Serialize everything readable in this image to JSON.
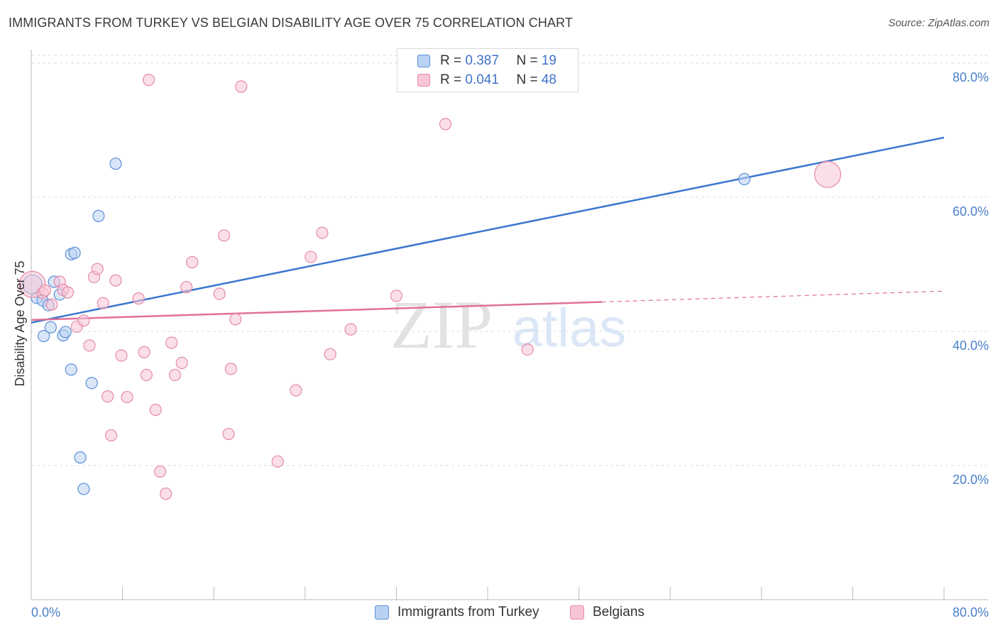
{
  "title": "IMMIGRANTS FROM TURKEY VS BELGIAN DISABILITY AGE OVER 75 CORRELATION CHART",
  "source": "Source: ZipAtlas.com",
  "watermark": {
    "zip": "ZIP",
    "atlas": "atlas"
  },
  "legend": {
    "series1": {
      "r_label": "R = ",
      "r_value": "0.387",
      "n_label": "N = ",
      "n_value": "19"
    },
    "series2": {
      "r_label": "R = ",
      "r_value": "0.041",
      "n_label": "N = ",
      "n_value": "48"
    }
  },
  "colors": {
    "blue_fill": "#b9d2f3",
    "blue_stroke": "#5b8fd6",
    "blue_line": "#3a76cf",
    "pink_fill": "#f8c5d5",
    "pink_stroke": "#e58aa8",
    "pink_line": "#e0709a",
    "grid": "#dddddd",
    "axis": "#bbbbbb"
  },
  "chart_data": {
    "type": "scatter",
    "title": "IMMIGRANTS FROM TURKEY VS BELGIAN DISABILITY AGE OVER 75 CORRELATION CHART",
    "xlabel": "",
    "ylabel": "Disability Age Over 75",
    "xlim": [
      0,
      80
    ],
    "ylim": [
      0,
      82
    ],
    "x_ticks": [
      {
        "value": 0,
        "label": "0.0%"
      },
      {
        "value": 80,
        "label": "80.0%"
      }
    ],
    "y_ticks": [
      {
        "value": 20,
        "label": "20.0%"
      },
      {
        "value": 40,
        "label": "40.0%"
      },
      {
        "value": 60,
        "label": "60.0%"
      },
      {
        "value": 80,
        "label": "80.0%"
      }
    ],
    "series": [
      {
        "name": "Immigrants from Turkey",
        "color": "#5b8fd6",
        "points": [
          [
            0.1,
            47.0,
            2
          ],
          [
            0.5,
            45.0,
            1
          ],
          [
            1.0,
            44.6,
            1
          ],
          [
            1.1,
            39.3,
            1
          ],
          [
            1.5,
            43.9,
            1
          ],
          [
            1.7,
            40.6,
            1
          ],
          [
            2.0,
            47.4,
            1
          ],
          [
            2.5,
            45.5,
            1
          ],
          [
            2.8,
            39.4,
            1
          ],
          [
            3.0,
            39.9,
            1
          ],
          [
            3.5,
            34.3,
            1
          ],
          [
            3.5,
            51.5,
            1
          ],
          [
            3.8,
            51.7,
            1
          ],
          [
            4.3,
            21.2,
            1
          ],
          [
            4.6,
            16.5,
            1
          ],
          [
            5.3,
            32.3,
            1
          ],
          [
            5.9,
            57.2,
            1
          ],
          [
            7.4,
            65.0,
            1
          ],
          [
            62.5,
            62.7,
            1
          ]
        ],
        "trend": {
          "x": [
            0,
            80
          ],
          "y": [
            41.3,
            68.9
          ]
        }
      },
      {
        "name": "Belgians",
        "color": "#e58aa8",
        "points": [
          [
            0.1,
            47.0,
            3
          ],
          [
            1.0,
            45.7,
            1
          ],
          [
            1.2,
            46.1,
            1
          ],
          [
            1.8,
            44.0,
            1
          ],
          [
            2.5,
            47.4,
            1
          ],
          [
            2.8,
            46.2,
            1
          ],
          [
            3.2,
            45.8,
            1
          ],
          [
            4.0,
            40.7,
            1
          ],
          [
            4.6,
            41.6,
            1
          ],
          [
            5.1,
            37.9,
            1
          ],
          [
            5.5,
            48.1,
            1
          ],
          [
            5.8,
            49.3,
            1
          ],
          [
            6.3,
            44.2,
            1
          ],
          [
            6.7,
            30.3,
            1
          ],
          [
            7.0,
            24.5,
            1
          ],
          [
            7.4,
            47.6,
            1
          ],
          [
            7.9,
            36.4,
            1
          ],
          [
            8.4,
            30.2,
            1
          ],
          [
            9.4,
            44.9,
            1
          ],
          [
            9.9,
            36.9,
            1
          ],
          [
            10.1,
            33.5,
            1
          ],
          [
            10.3,
            77.5,
            1
          ],
          [
            10.9,
            28.3,
            1
          ],
          [
            11.3,
            19.1,
            1
          ],
          [
            11.8,
            15.8,
            1
          ],
          [
            12.3,
            38.3,
            1
          ],
          [
            12.6,
            33.5,
            1
          ],
          [
            13.2,
            35.3,
            1
          ],
          [
            13.6,
            46.6,
            1
          ],
          [
            14.1,
            50.3,
            1
          ],
          [
            16.5,
            45.6,
            1
          ],
          [
            16.9,
            54.3,
            1
          ],
          [
            17.3,
            24.7,
            1
          ],
          [
            17.5,
            34.4,
            1
          ],
          [
            17.9,
            41.8,
            1
          ],
          [
            18.4,
            76.5,
            1
          ],
          [
            21.6,
            20.6,
            1
          ],
          [
            23.2,
            31.2,
            1
          ],
          [
            24.5,
            51.1,
            1
          ],
          [
            25.5,
            54.7,
            1
          ],
          [
            26.2,
            36.6,
            1
          ],
          [
            28.0,
            40.3,
            1
          ],
          [
            32.0,
            45.3,
            1
          ],
          [
            36.3,
            70.9,
            1
          ],
          [
            43.5,
            37.3,
            1
          ],
          [
            69.8,
            63.4,
            3
          ]
        ],
        "trend": {
          "x": [
            0,
            80
          ],
          "y": [
            41.7,
            46.0
          ],
          "solid_until": 50
        }
      }
    ]
  },
  "bottom_legend": {
    "item1": "Immigrants from Turkey",
    "item2": "Belgians"
  }
}
